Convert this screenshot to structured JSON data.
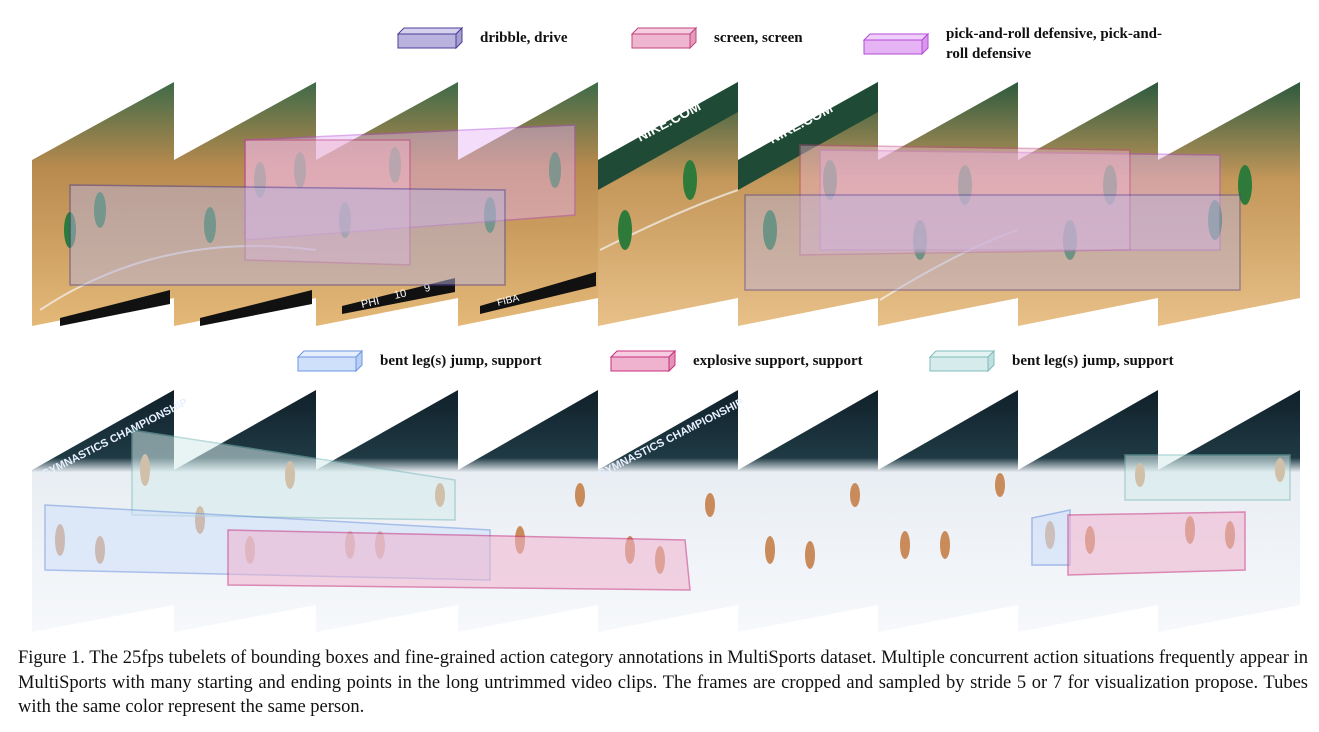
{
  "legend_top": [
    {
      "label": "dribble, drive",
      "color": "#4b3f9a",
      "fill": "#b9b3dd"
    },
    {
      "label": "screen, screen",
      "color": "#c2457f",
      "fill": "#efb7cf"
    },
    {
      "label": "pick-and-roll defensive, pick-and-roll defensive",
      "color": "#b34bd6",
      "fill": "#e6b4f4"
    }
  ],
  "legend_bottom": [
    {
      "label": "bent leg(s) jump, support",
      "color": "#6f95e0",
      "fill": "#cfe0fa"
    },
    {
      "label": "explosive support, support",
      "color": "#c92f7d",
      "fill": "#efb3cf"
    },
    {
      "label": "bent leg(s) jump, support",
      "color": "#7fbcbc",
      "fill": "#d6ecec"
    }
  ],
  "scoreboard": {
    "team": "PHI",
    "score": "10",
    "period": "9",
    "league": "FIBA"
  },
  "court_text": {
    "sponsor": "NIKE.COM",
    "banner": "GYMNASTICS CHAMPIONSHIP"
  },
  "caption": "Figure 1. The 25fps tubelets of bounding boxes and fine-grained action category annotations in MultiSports dataset. Multiple concurrent action situations frequently appear in MultiSports with many starting and ending points in the long untrimmed video clips. The frames are cropped and sampled by stride 5 or 7 for visualization propose. Tubes with the same color represent the same person."
}
